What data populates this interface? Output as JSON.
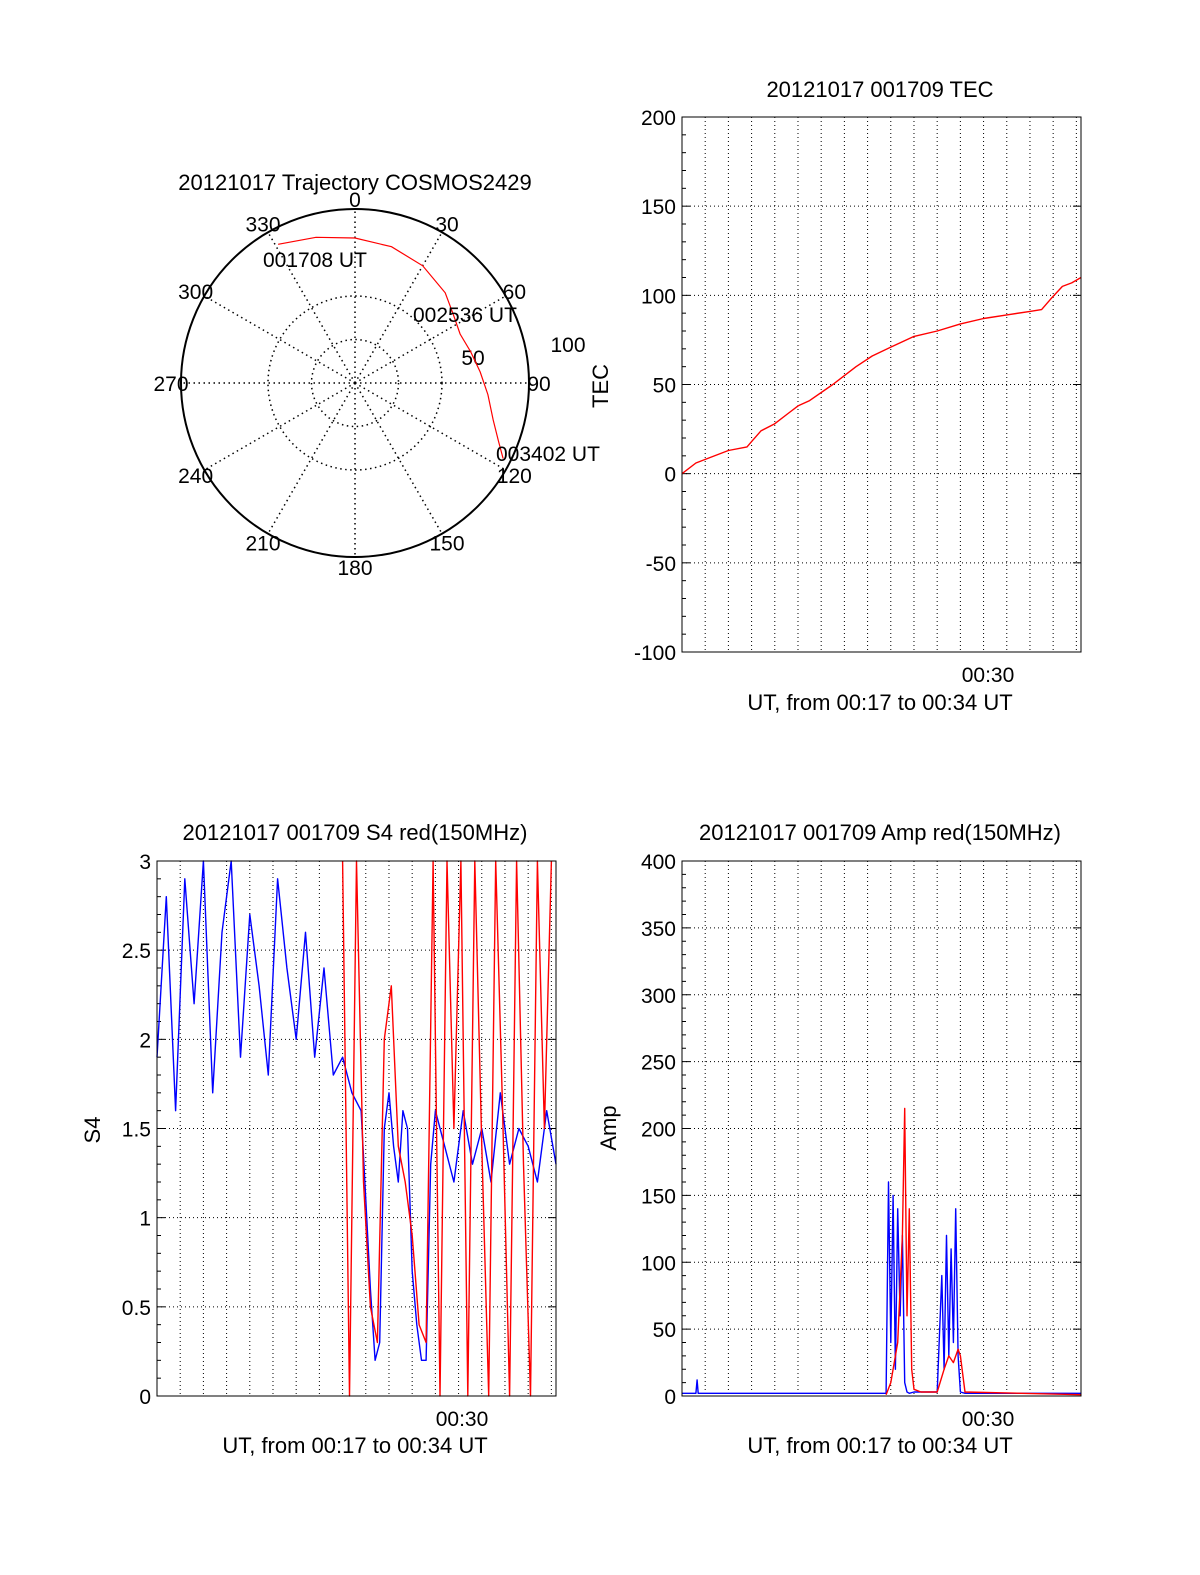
{
  "colors": {
    "red": "#ff0000",
    "blue": "#0000ff",
    "axis": "#000000"
  },
  "chart_data": [
    {
      "type": "polar",
      "title": "20121017 Trajectory COSMOS2429",
      "angle_labels": [
        "0",
        "30",
        "60",
        "90",
        "120",
        "150",
        "180",
        "210",
        "240",
        "270",
        "300",
        "330"
      ],
      "radius_labels": [
        "50",
        "100"
      ],
      "series": [
        {
          "color": "red",
          "points": [
            {
              "az": 331,
              "el": 8
            },
            {
              "az": 345,
              "el": 12
            },
            {
              "az": 0,
              "el": 15
            },
            {
              "az": 15,
              "el": 17
            },
            {
              "az": 30,
              "el": 20
            },
            {
              "az": 45,
              "el": 24
            },
            {
              "az": 55,
              "el": 28
            },
            {
              "az": 65,
              "el": 30
            },
            {
              "az": 75,
              "el": 28
            },
            {
              "az": 85,
              "el": 25
            },
            {
              "az": 95,
              "el": 21
            },
            {
              "az": 105,
              "el": 16
            },
            {
              "az": 112,
              "el": 10
            },
            {
              "az": 117,
              "el": 4
            }
          ]
        }
      ],
      "annotations": [
        "001708 UT",
        "002536 UT",
        "003402 UT"
      ]
    },
    {
      "type": "line",
      "title": "20121017 001709 TEC",
      "xlabel": "UT, from 00:17 to 00:34 UT",
      "ylabel": "TEC",
      "xlim": [
        0,
        17.2
      ],
      "ylim": [
        -100,
        200
      ],
      "xticks": [
        {
          "x": 13,
          "label": "00:30"
        }
      ],
      "yticks": [
        "200",
        "150",
        "100",
        "50",
        "0",
        "-50",
        "-100"
      ],
      "grid": true,
      "series": [
        {
          "color": "red",
          "x": [
            0,
            0.6,
            1.2,
            2.0,
            2.8,
            3.0,
            3.4,
            4.0,
            4.6,
            5.0,
            5.5,
            6.5,
            7.5,
            8.2,
            9.0,
            10.0,
            11.0,
            12.0,
            13.0,
            14.0,
            15.0,
            15.5,
            15.9,
            16.4,
            16.8,
            17.2
          ],
          "y": [
            0,
            6,
            9,
            13,
            15,
            18,
            24,
            28,
            34,
            38,
            41,
            50,
            60,
            66,
            71,
            77,
            80,
            84,
            87,
            89,
            91,
            92,
            98,
            105,
            107,
            110
          ]
        }
      ]
    },
    {
      "type": "line",
      "title": "20121017 001709 S4 red(150MHz)",
      "xlabel": "UT, from 00:17 to 00:34 UT",
      "ylabel": "S4",
      "xlim": [
        0,
        17.2
      ],
      "ylim": [
        0,
        3
      ],
      "xticks": [
        {
          "x": 13,
          "label": "00:30"
        }
      ],
      "yticks": [
        "3",
        "2.5",
        "2",
        "1.5",
        "1",
        "0.5",
        "0"
      ],
      "grid": true,
      "series": [
        {
          "color": "blue",
          "x": [
            0.0,
            0.4,
            0.8,
            1.2,
            1.6,
            2.0,
            2.4,
            2.8,
            3.2,
            3.6,
            4.0,
            4.4,
            4.8,
            5.2,
            5.6,
            6.0,
            6.4,
            6.8,
            7.2,
            7.6,
            8.0,
            8.4,
            8.8,
            9.0,
            9.2,
            9.4,
            9.6,
            9.8,
            10.0,
            10.2,
            10.4,
            10.6,
            10.8,
            11.0,
            11.2,
            11.4,
            11.6,
            11.8,
            12.0,
            12.4,
            12.8,
            13.2,
            13.6,
            14.0,
            14.4,
            14.8,
            15.2,
            15.6,
            16.0,
            16.4,
            16.8,
            17.2
          ],
          "y": [
            1.9,
            2.8,
            1.6,
            2.9,
            2.2,
            3.0,
            1.7,
            2.6,
            3.0,
            1.9,
            2.7,
            2.3,
            1.8,
            2.9,
            2.4,
            2.0,
            2.6,
            1.9,
            2.4,
            1.8,
            1.9,
            1.7,
            1.6,
            1.1,
            0.6,
            0.2,
            0.3,
            1.5,
            1.7,
            1.4,
            1.2,
            1.6,
            1.5,
            0.7,
            0.4,
            0.2,
            0.2,
            1.3,
            1.6,
            1.4,
            1.2,
            1.6,
            1.3,
            1.5,
            1.2,
            1.7,
            1.3,
            1.5,
            1.4,
            1.2,
            1.6,
            1.3
          ]
        },
        {
          "color": "red",
          "x": [
            8.0,
            8.3,
            8.6,
            8.9,
            9.2,
            9.5,
            9.8,
            10.1,
            10.4,
            10.7,
            11.0,
            11.3,
            11.6,
            11.9,
            12.2,
            12.5,
            12.8,
            13.1,
            13.4,
            13.7,
            14.0,
            14.3,
            14.6,
            14.9,
            15.2,
            15.5,
            15.8,
            16.1,
            16.4,
            16.7,
            17.0
          ],
          "y": [
            3.0,
            0.0,
            3.0,
            1.2,
            0.5,
            0.3,
            2.0,
            2.3,
            1.4,
            1.2,
            0.9,
            0.4,
            0.3,
            3.0,
            0.0,
            3.0,
            1.5,
            3.0,
            0.0,
            3.0,
            1.4,
            0.0,
            3.0,
            1.6,
            0.0,
            3.0,
            1.3,
            0.0,
            3.0,
            1.5,
            3.0
          ]
        }
      ]
    },
    {
      "type": "line",
      "title": "20121017 001709 Amp red(150MHz)",
      "xlabel": "UT, from 00:17 to 00:34 UT",
      "ylabel": "Amp",
      "xlim": [
        0,
        17.2
      ],
      "ylim": [
        0,
        400
      ],
      "xticks": [
        {
          "x": 13,
          "label": "00:30"
        }
      ],
      "yticks": [
        "400",
        "350",
        "300",
        "250",
        "200",
        "150",
        "100",
        "50",
        "0"
      ],
      "grid": true,
      "series": [
        {
          "color": "blue",
          "x": [
            0,
            0.6,
            0.65,
            0.7,
            8.8,
            8.9,
            9.0,
            9.1,
            9.2,
            9.3,
            9.4,
            9.5,
            9.6,
            9.7,
            9.8,
            10.0,
            11.0,
            11.2,
            11.3,
            11.4,
            11.5,
            11.6,
            11.7,
            11.8,
            11.9,
            12.0,
            12.2,
            17.2
          ],
          "y": [
            2,
            2,
            12,
            2,
            2,
            160,
            40,
            150,
            20,
            140,
            60,
            120,
            10,
            3,
            2,
            3,
            3,
            90,
            20,
            120,
            30,
            110,
            40,
            140,
            30,
            3,
            2,
            2
          ]
        },
        {
          "color": "red",
          "x": [
            8.8,
            9.0,
            9.3,
            9.5,
            9.6,
            9.7,
            9.8,
            9.9,
            10.0,
            10.3,
            11.0,
            11.3,
            11.5,
            11.7,
            11.9,
            12.0,
            12.2,
            17.2
          ],
          "y": [
            1,
            10,
            40,
            120,
            215,
            60,
            140,
            20,
            5,
            3,
            3,
            20,
            30,
            25,
            35,
            30,
            3,
            1
          ]
        }
      ]
    }
  ]
}
